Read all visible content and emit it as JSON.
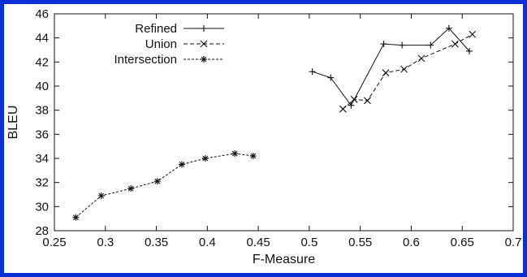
{
  "chart_data": {
    "type": "line",
    "title": "",
    "xlabel": "F-Measure",
    "ylabel": "BLEU",
    "xlim": [
      0.25,
      0.7
    ],
    "ylim": [
      28,
      46
    ],
    "xticks": [
      "0.25",
      "0.3",
      "0.35",
      "0.4",
      "0.45",
      "0.5",
      "0.55",
      "0.6",
      "0.65",
      "0.7"
    ],
    "yticks": [
      "28",
      "30",
      "32",
      "34",
      "36",
      "38",
      "40",
      "42",
      "44",
      "46"
    ],
    "grid": false,
    "legend_position": "top-left",
    "series": [
      {
        "name": "Refined",
        "line_style": "solid",
        "marker": "plus",
        "color": "#111111",
        "points": [
          [
            0.503,
            41.2
          ],
          [
            0.521,
            40.7
          ],
          [
            0.541,
            38.4
          ],
          [
            0.573,
            43.5
          ],
          [
            0.591,
            43.4
          ],
          [
            0.619,
            43.4
          ],
          [
            0.637,
            44.8
          ],
          [
            0.657,
            42.9
          ]
        ]
      },
      {
        "name": "Union",
        "line_style": "dashed",
        "marker": "x",
        "color": "#111111",
        "points": [
          [
            0.533,
            38.1
          ],
          [
            0.544,
            38.9
          ],
          [
            0.557,
            38.8
          ],
          [
            0.575,
            41.1
          ],
          [
            0.593,
            41.4
          ],
          [
            0.61,
            42.3
          ],
          [
            0.643,
            43.5
          ],
          [
            0.66,
            44.3
          ]
        ]
      },
      {
        "name": "Intersection",
        "line_style": "dotted",
        "marker": "star",
        "color": "#111111",
        "points": [
          [
            0.271,
            29.1
          ],
          [
            0.296,
            30.9
          ],
          [
            0.325,
            31.5
          ],
          [
            0.351,
            32.1
          ],
          [
            0.375,
            33.5
          ],
          [
            0.398,
            34.0
          ],
          [
            0.427,
            34.4
          ],
          [
            0.445,
            34.2
          ]
        ]
      }
    ]
  },
  "frame": {
    "border_color": "#0a2fd6"
  }
}
